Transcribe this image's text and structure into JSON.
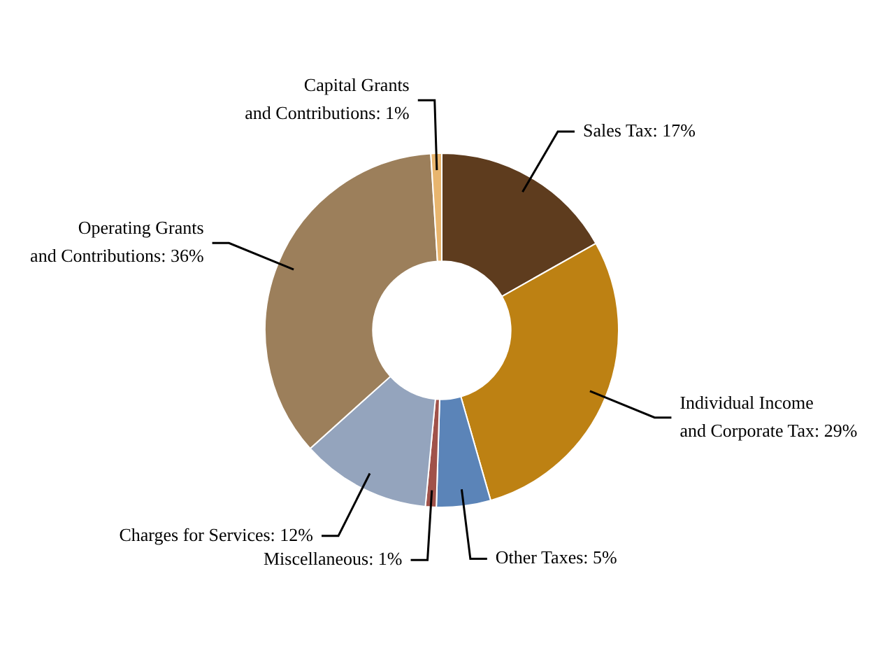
{
  "chart_data": {
    "type": "donut",
    "categories": [
      "Sales Tax",
      "Individual Income and Corporate Tax",
      "Other Taxes",
      "Miscellaneous",
      "Charges for Services",
      "Operating Grants and Contributions",
      "Capital Grants and Contributions"
    ],
    "values": [
      17,
      29,
      5,
      1,
      12,
      36,
      1
    ],
    "value_labels": [
      "17%",
      "29%",
      "5%",
      "1%",
      "12%",
      "36%",
      "1%"
    ],
    "colors": [
      "#5e3c1e",
      "#bd8113",
      "#5b84b8",
      "#a0524a",
      "#94a4bd",
      "#9c7f5b",
      "#e8b56e"
    ],
    "legend": false
  }
}
